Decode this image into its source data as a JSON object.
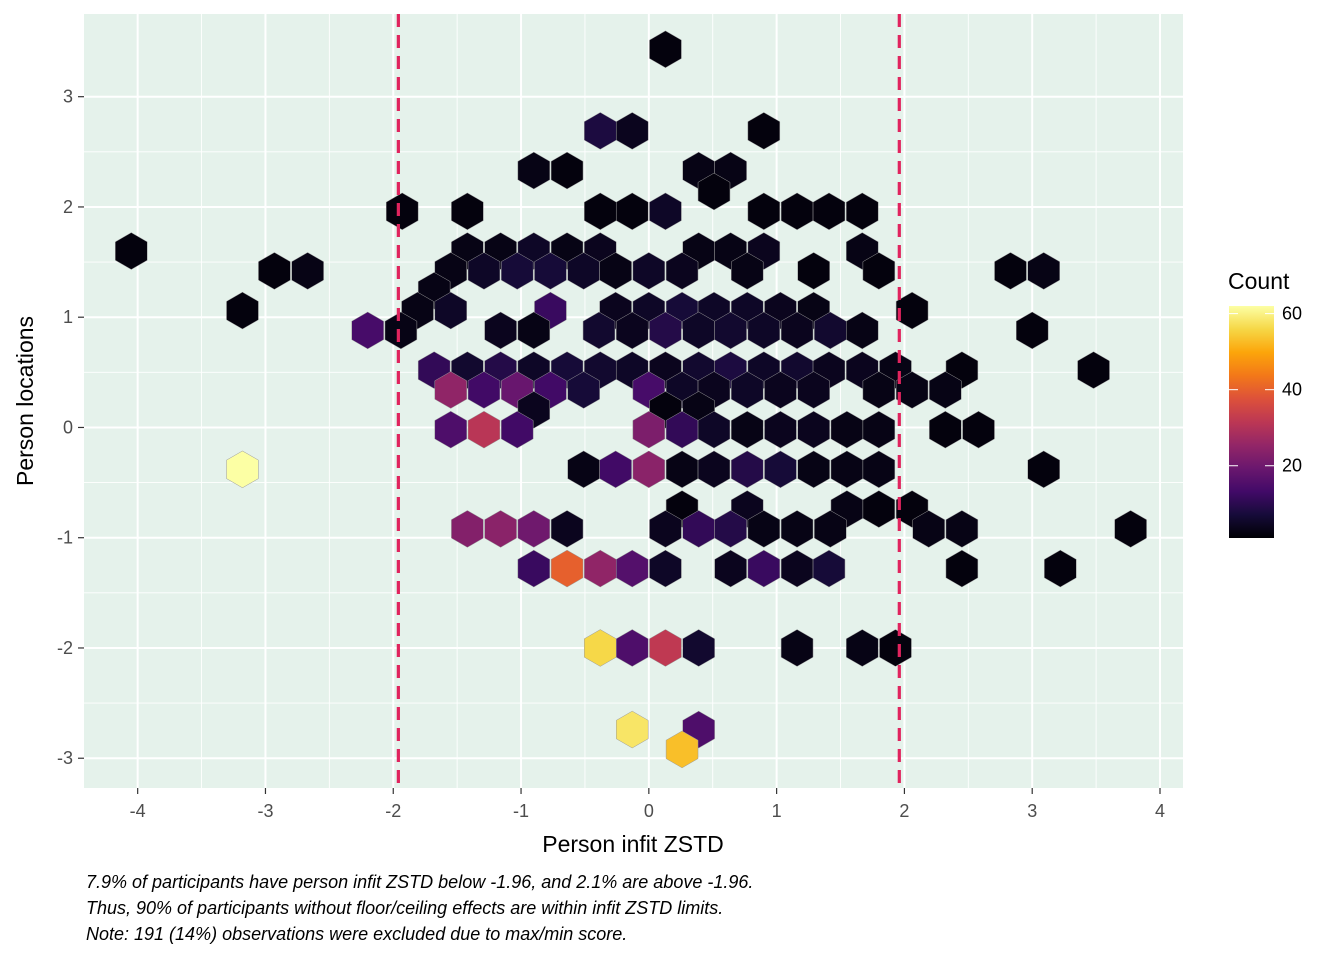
{
  "chart_data": {
    "type": "hexbin",
    "xlabel": "Person infit ZSTD",
    "ylabel": "Person locations",
    "xlim": [
      -4.42,
      4.18
    ],
    "ylim": [
      -3.27,
      3.75
    ],
    "x_ticks": [
      -4,
      -3,
      -2,
      -1,
      0,
      1,
      2,
      3,
      4
    ],
    "y_ticks": [
      -3,
      -2,
      -1,
      0,
      1,
      2,
      3
    ],
    "reference_lines": [
      -1.96,
      1.96
    ],
    "reference_line_color": "#e0245e",
    "panel_background": "#e5f2eb",
    "grid": true,
    "legend": {
      "title": "Count",
      "position": "right",
      "ticks": [
        20,
        40,
        60
      ],
      "min": 1,
      "max": 62,
      "colormap": "inferno"
    },
    "bins": [
      {
        "x": 0.13,
        "y": 3.43,
        "count": 2
      },
      {
        "x": -0.38,
        "y": 2.69,
        "count": 8
      },
      {
        "x": -0.13,
        "y": 2.69,
        "count": 4
      },
      {
        "x": 0.9,
        "y": 2.69,
        "count": 2
      },
      {
        "x": -0.9,
        "y": 2.33,
        "count": 3
      },
      {
        "x": -0.64,
        "y": 2.33,
        "count": 2
      },
      {
        "x": 0.39,
        "y": 2.33,
        "count": 3
      },
      {
        "x": 0.64,
        "y": 2.33,
        "count": 3
      },
      {
        "x": 0.51,
        "y": 2.14,
        "count": 2
      },
      {
        "x": -1.93,
        "y": 1.96,
        "count": 2
      },
      {
        "x": -1.42,
        "y": 1.96,
        "count": 2
      },
      {
        "x": -0.38,
        "y": 1.96,
        "count": 2
      },
      {
        "x": -0.13,
        "y": 1.96,
        "count": 2
      },
      {
        "x": 0.13,
        "y": 1.96,
        "count": 5
      },
      {
        "x": 0.9,
        "y": 1.96,
        "count": 2
      },
      {
        "x": 1.16,
        "y": 1.96,
        "count": 2
      },
      {
        "x": 1.41,
        "y": 1.96,
        "count": 2
      },
      {
        "x": 1.67,
        "y": 1.96,
        "count": 2
      },
      {
        "x": -4.05,
        "y": 1.6,
        "count": 2
      },
      {
        "x": -1.42,
        "y": 1.6,
        "count": 3
      },
      {
        "x": -1.16,
        "y": 1.6,
        "count": 3
      },
      {
        "x": -0.9,
        "y": 1.6,
        "count": 5
      },
      {
        "x": -0.64,
        "y": 1.6,
        "count": 3
      },
      {
        "x": -0.38,
        "y": 1.6,
        "count": 4
      },
      {
        "x": 0.39,
        "y": 1.6,
        "count": 3
      },
      {
        "x": 0.64,
        "y": 1.6,
        "count": 3
      },
      {
        "x": 0.9,
        "y": 1.6,
        "count": 4
      },
      {
        "x": 1.67,
        "y": 1.6,
        "count": 3
      },
      {
        "x": -2.93,
        "y": 1.42,
        "count": 2
      },
      {
        "x": -2.67,
        "y": 1.42,
        "count": 3
      },
      {
        "x": -1.55,
        "y": 1.42,
        "count": 3
      },
      {
        "x": -1.29,
        "y": 1.42,
        "count": 5
      },
      {
        "x": -1.03,
        "y": 1.42,
        "count": 7
      },
      {
        "x": -0.77,
        "y": 1.42,
        "count": 7
      },
      {
        "x": -0.51,
        "y": 1.42,
        "count": 5
      },
      {
        "x": -0.26,
        "y": 1.42,
        "count": 3
      },
      {
        "x": 0.0,
        "y": 1.42,
        "count": 5
      },
      {
        "x": 0.26,
        "y": 1.42,
        "count": 4
      },
      {
        "x": 0.77,
        "y": 1.42,
        "count": 3
      },
      {
        "x": 1.29,
        "y": 1.42,
        "count": 2
      },
      {
        "x": 1.8,
        "y": 1.42,
        "count": 2
      },
      {
        "x": 2.83,
        "y": 1.42,
        "count": 2
      },
      {
        "x": 3.09,
        "y": 1.42,
        "count": 3
      },
      {
        "x": -1.68,
        "y": 1.24,
        "count": 3
      },
      {
        "x": -3.18,
        "y": 1.06,
        "count": 2
      },
      {
        "x": -1.81,
        "y": 1.06,
        "count": 3
      },
      {
        "x": -1.55,
        "y": 1.06,
        "count": 5
      },
      {
        "x": -0.77,
        "y": 1.06,
        "count": 12
      },
      {
        "x": -0.26,
        "y": 1.06,
        "count": 4
      },
      {
        "x": 0.0,
        "y": 1.06,
        "count": 5
      },
      {
        "x": 0.26,
        "y": 1.06,
        "count": 7
      },
      {
        "x": 0.51,
        "y": 1.06,
        "count": 5
      },
      {
        "x": 0.77,
        "y": 1.06,
        "count": 5
      },
      {
        "x": 1.03,
        "y": 1.06,
        "count": 4
      },
      {
        "x": 1.29,
        "y": 1.06,
        "count": 3
      },
      {
        "x": 2.06,
        "y": 1.06,
        "count": 2
      },
      {
        "x": -2.2,
        "y": 0.88,
        "count": 14
      },
      {
        "x": -1.94,
        "y": 0.88,
        "count": 3
      },
      {
        "x": -1.16,
        "y": 0.88,
        "count": 4
      },
      {
        "x": -0.9,
        "y": 0.88,
        "count": 3
      },
      {
        "x": -0.39,
        "y": 0.88,
        "count": 6
      },
      {
        "x": -0.13,
        "y": 0.88,
        "count": 4
      },
      {
        "x": 0.13,
        "y": 0.88,
        "count": 9
      },
      {
        "x": 0.39,
        "y": 0.88,
        "count": 5
      },
      {
        "x": 0.64,
        "y": 0.88,
        "count": 6
      },
      {
        "x": 0.9,
        "y": 0.88,
        "count": 5
      },
      {
        "x": 1.16,
        "y": 0.88,
        "count": 4
      },
      {
        "x": 1.42,
        "y": 0.88,
        "count": 6
      },
      {
        "x": 1.67,
        "y": 0.88,
        "count": 3
      },
      {
        "x": 3.0,
        "y": 0.88,
        "count": 2
      },
      {
        "x": -1.68,
        "y": 0.52,
        "count": 11
      },
      {
        "x": -1.42,
        "y": 0.52,
        "count": 6
      },
      {
        "x": -1.16,
        "y": 0.52,
        "count": 9
      },
      {
        "x": -0.9,
        "y": 0.52,
        "count": 5
      },
      {
        "x": -0.64,
        "y": 0.52,
        "count": 7
      },
      {
        "x": -0.38,
        "y": 0.52,
        "count": 6
      },
      {
        "x": -0.13,
        "y": 0.52,
        "count": 5
      },
      {
        "x": 0.13,
        "y": 0.52,
        "count": 4
      },
      {
        "x": 0.39,
        "y": 0.52,
        "count": 6
      },
      {
        "x": 0.64,
        "y": 0.52,
        "count": 8
      },
      {
        "x": 0.9,
        "y": 0.52,
        "count": 5
      },
      {
        "x": 1.16,
        "y": 0.52,
        "count": 6
      },
      {
        "x": 1.41,
        "y": 0.52,
        "count": 4
      },
      {
        "x": 1.67,
        "y": 0.52,
        "count": 4
      },
      {
        "x": 1.93,
        "y": 0.52,
        "count": 3
      },
      {
        "x": 2.45,
        "y": 0.52,
        "count": 2
      },
      {
        "x": 3.48,
        "y": 0.52,
        "count": 2
      },
      {
        "x": -1.55,
        "y": 0.34,
        "count": 25
      },
      {
        "x": -1.29,
        "y": 0.34,
        "count": 13
      },
      {
        "x": -1.03,
        "y": 0.34,
        "count": 19
      },
      {
        "x": -0.77,
        "y": 0.34,
        "count": 13
      },
      {
        "x": -0.51,
        "y": 0.34,
        "count": 7
      },
      {
        "x": 0.0,
        "y": 0.34,
        "count": 14
      },
      {
        "x": 0.26,
        "y": 0.34,
        "count": 5
      },
      {
        "x": 0.51,
        "y": 0.34,
        "count": 4
      },
      {
        "x": 0.77,
        "y": 0.34,
        "count": 5
      },
      {
        "x": 1.03,
        "y": 0.34,
        "count": 4
      },
      {
        "x": 1.29,
        "y": 0.34,
        "count": 4
      },
      {
        "x": 1.8,
        "y": 0.34,
        "count": 3
      },
      {
        "x": 2.06,
        "y": 0.34,
        "count": 3
      },
      {
        "x": 2.32,
        "y": 0.34,
        "count": 3
      },
      {
        "x": -0.9,
        "y": 0.16,
        "count": 4
      },
      {
        "x": 0.13,
        "y": 0.16,
        "count": 2
      },
      {
        "x": 0.39,
        "y": 0.16,
        "count": 3
      },
      {
        "x": -1.55,
        "y": -0.02,
        "count": 15
      },
      {
        "x": -1.29,
        "y": -0.02,
        "count": 31
      },
      {
        "x": -1.03,
        "y": -0.02,
        "count": 13
      },
      {
        "x": 0.0,
        "y": -0.02,
        "count": 22
      },
      {
        "x": 0.26,
        "y": -0.02,
        "count": 11
      },
      {
        "x": 0.51,
        "y": -0.02,
        "count": 5
      },
      {
        "x": 0.77,
        "y": -0.02,
        "count": 3
      },
      {
        "x": 1.03,
        "y": -0.02,
        "count": 4
      },
      {
        "x": 1.29,
        "y": -0.02,
        "count": 4
      },
      {
        "x": 1.55,
        "y": -0.02,
        "count": 3
      },
      {
        "x": 1.8,
        "y": -0.02,
        "count": 3
      },
      {
        "x": 2.32,
        "y": -0.02,
        "count": 2
      },
      {
        "x": 2.58,
        "y": -0.02,
        "count": 2
      },
      {
        "x": -3.18,
        "y": -0.38,
        "count": 62
      },
      {
        "x": -0.51,
        "y": -0.38,
        "count": 3
      },
      {
        "x": -0.26,
        "y": -0.38,
        "count": 13
      },
      {
        "x": 0.0,
        "y": -0.38,
        "count": 24
      },
      {
        "x": 0.26,
        "y": -0.38,
        "count": 3
      },
      {
        "x": 0.51,
        "y": -0.38,
        "count": 4
      },
      {
        "x": 0.77,
        "y": -0.38,
        "count": 9
      },
      {
        "x": 1.03,
        "y": -0.38,
        "count": 7
      },
      {
        "x": 1.29,
        "y": -0.38,
        "count": 3
      },
      {
        "x": 1.55,
        "y": -0.38,
        "count": 3
      },
      {
        "x": 1.8,
        "y": -0.38,
        "count": 3
      },
      {
        "x": 3.09,
        "y": -0.38,
        "count": 2
      },
      {
        "x": 0.26,
        "y": -0.74,
        "count": 2
      },
      {
        "x": 0.77,
        "y": -0.74,
        "count": 4
      },
      {
        "x": 1.55,
        "y": -0.74,
        "count": 3
      },
      {
        "x": 1.8,
        "y": -0.74,
        "count": 2
      },
      {
        "x": 2.06,
        "y": -0.74,
        "count": 2
      },
      {
        "x": -1.42,
        "y": -0.92,
        "count": 23
      },
      {
        "x": -1.16,
        "y": -0.92,
        "count": 24
      },
      {
        "x": -0.9,
        "y": -0.92,
        "count": 20
      },
      {
        "x": -0.64,
        "y": -0.92,
        "count": 4
      },
      {
        "x": 0.13,
        "y": -0.92,
        "count": 4
      },
      {
        "x": 0.39,
        "y": -0.92,
        "count": 11
      },
      {
        "x": 0.64,
        "y": -0.92,
        "count": 9
      },
      {
        "x": 0.9,
        "y": -0.92,
        "count": 3
      },
      {
        "x": 1.16,
        "y": -0.92,
        "count": 3
      },
      {
        "x": 1.42,
        "y": -0.92,
        "count": 3
      },
      {
        "x": 2.19,
        "y": -0.92,
        "count": 3
      },
      {
        "x": 2.45,
        "y": -0.92,
        "count": 3
      },
      {
        "x": 3.77,
        "y": -0.92,
        "count": 2
      },
      {
        "x": -0.9,
        "y": -1.28,
        "count": 12
      },
      {
        "x": -0.64,
        "y": -1.28,
        "count": 40
      },
      {
        "x": -0.38,
        "y": -1.28,
        "count": 25
      },
      {
        "x": -0.13,
        "y": -1.28,
        "count": 16
      },
      {
        "x": 0.13,
        "y": -1.28,
        "count": 5
      },
      {
        "x": 0.64,
        "y": -1.28,
        "count": 4
      },
      {
        "x": 0.9,
        "y": -1.28,
        "count": 12
      },
      {
        "x": 1.16,
        "y": -1.28,
        "count": 4
      },
      {
        "x": 1.41,
        "y": -1.28,
        "count": 7
      },
      {
        "x": 2.45,
        "y": -1.28,
        "count": 2
      },
      {
        "x": 3.22,
        "y": -1.28,
        "count": 2
      },
      {
        "x": -0.38,
        "y": -2.0,
        "count": 56
      },
      {
        "x": -0.13,
        "y": -2.0,
        "count": 15
      },
      {
        "x": 0.13,
        "y": -2.0,
        "count": 32
      },
      {
        "x": 0.39,
        "y": -2.0,
        "count": 6
      },
      {
        "x": 1.16,
        "y": -2.0,
        "count": 3
      },
      {
        "x": 1.67,
        "y": -2.0,
        "count": 3
      },
      {
        "x": 1.93,
        "y": -2.0,
        "count": 2
      },
      {
        "x": -0.13,
        "y": -2.74,
        "count": 58
      },
      {
        "x": 0.39,
        "y": -2.74,
        "count": 15
      },
      {
        "x": 0.26,
        "y": -2.92,
        "count": 53
      }
    ]
  },
  "caption": {
    "line1": "7.9% of participants have person infit ZSTD below -1.96, and 2.1% are above -1.96.",
    "line2": "Thus, 90% of participants without floor/ceiling effects are within infit ZSTD limits.",
    "line3": "Note: 191 (14%) observations were excluded due to max/min score."
  }
}
